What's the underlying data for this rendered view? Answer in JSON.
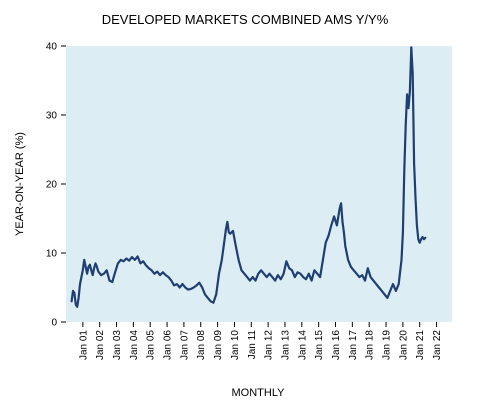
{
  "chart_data": {
    "type": "line",
    "title": "DEVELOPED MARKETS COMBINED AMS Y/Y%",
    "xlabel": "MONTHLY",
    "ylabel": "YEAR-ON-YEAR (%)",
    "ylim": [
      0,
      40
    ],
    "yticks": [
      0,
      10,
      20,
      30,
      40
    ],
    "xlim": [
      "2000-01",
      "2022-12"
    ],
    "xticks": [
      {
        "x": "2001-01",
        "label": "Jan 01"
      },
      {
        "x": "2002-01",
        "label": "Jan 02"
      },
      {
        "x": "2003-01",
        "label": "Jan 03"
      },
      {
        "x": "2004-01",
        "label": "Jan 04"
      },
      {
        "x": "2005-01",
        "label": "Jan 05"
      },
      {
        "x": "2006-01",
        "label": "Jan 06"
      },
      {
        "x": "2007-01",
        "label": "Jan 07"
      },
      {
        "x": "2008-01",
        "label": "Jan 08"
      },
      {
        "x": "2009-01",
        "label": "Jan 09"
      },
      {
        "x": "2010-01",
        "label": "Jan 10"
      },
      {
        "x": "2011-01",
        "label": "Jan 11"
      },
      {
        "x": "2012-01",
        "label": "Jan 12"
      },
      {
        "x": "2013-01",
        "label": "Jan 13"
      },
      {
        "x": "2014-01",
        "label": "Jan 14"
      },
      {
        "x": "2015-01",
        "label": "Jan 15"
      },
      {
        "x": "2016-01",
        "label": "Jan 16"
      },
      {
        "x": "2017-01",
        "label": "Jan 17"
      },
      {
        "x": "2018-01",
        "label": "Jan 18"
      },
      {
        "x": "2019-01",
        "label": "Jan 19"
      },
      {
        "x": "2020-01",
        "label": "Jan 20"
      },
      {
        "x": "2021-01",
        "label": "Jan 21"
      },
      {
        "x": "2022-01",
        "label": "Jan 22"
      }
    ],
    "grid": false,
    "legend": "none",
    "colors": {
      "plot_background": "#dcedf3",
      "line": "#1f3f73"
    },
    "series": [
      {
        "x": [
          "2000-05",
          "2000-06",
          "2000-07",
          "2000-08",
          "2000-09",
          "2000-10",
          "2000-11",
          "2000-12",
          "2001-01",
          "2001-02",
          "2001-03",
          "2001-04",
          "2001-05",
          "2001-06",
          "2001-07",
          "2001-08",
          "2001-09",
          "2001-10",
          "2001-11",
          "2001-12",
          "2002-02",
          "2002-04",
          "2002-06",
          "2002-08",
          "2002-10",
          "2002-12",
          "2003-02",
          "2003-04",
          "2003-06",
          "2003-08",
          "2003-10",
          "2003-12",
          "2004-02",
          "2004-04",
          "2004-06",
          "2004-08",
          "2004-10",
          "2004-12",
          "2005-02",
          "2005-04",
          "2005-06",
          "2005-08",
          "2005-10",
          "2005-12",
          "2006-02",
          "2006-04",
          "2006-06",
          "2006-08",
          "2006-10",
          "2006-12",
          "2007-02",
          "2007-04",
          "2007-06",
          "2007-08",
          "2007-10",
          "2007-12",
          "2008-02",
          "2008-04",
          "2008-06",
          "2008-08",
          "2008-10",
          "2008-12",
          "2009-02",
          "2009-03",
          "2009-04",
          "2009-05",
          "2009-06",
          "2009-07",
          "2009-08",
          "2009-09",
          "2009-10",
          "2009-12",
          "2010-02",
          "2010-04",
          "2010-06",
          "2010-08",
          "2010-10",
          "2010-12",
          "2011-02",
          "2011-04",
          "2011-06",
          "2011-08",
          "2011-10",
          "2011-12",
          "2012-02",
          "2012-04",
          "2012-06",
          "2012-08",
          "2012-10",
          "2012-12",
          "2013-02",
          "2013-04",
          "2013-06",
          "2013-08",
          "2013-10",
          "2013-12",
          "2014-02",
          "2014-04",
          "2014-06",
          "2014-08",
          "2014-10",
          "2014-12",
          "2015-02",
          "2015-04",
          "2015-06",
          "2015-08",
          "2015-10",
          "2015-12",
          "2016-02",
          "2016-04",
          "2016-05",
          "2016-06",
          "2016-07",
          "2016-08",
          "2016-10",
          "2016-12",
          "2017-02",
          "2017-04",
          "2017-06",
          "2017-08",
          "2017-10",
          "2017-12",
          "2018-02",
          "2018-04",
          "2018-06",
          "2018-08",
          "2018-10",
          "2018-12",
          "2019-02",
          "2019-04",
          "2019-06",
          "2019-08",
          "2019-10",
          "2019-12",
          "2020-01",
          "2020-02",
          "2020-03",
          "2020-04",
          "2020-05",
          "2020-06",
          "2020-07",
          "2020-08",
          "2020-09",
          "2020-10",
          "2020-11",
          "2020-12",
          "2021-01",
          "2021-02",
          "2021-03",
          "2021-04",
          "2021-05"
        ],
        "y": [
          3.0,
          4.5,
          4.2,
          2.5,
          2.2,
          3.5,
          5.5,
          6.5,
          7.5,
          9.0,
          8.0,
          7.0,
          8.0,
          8.3,
          7.5,
          6.8,
          7.8,
          8.5,
          8.0,
          7.3,
          6.8,
          7.0,
          7.5,
          6.0,
          5.8,
          7.2,
          8.5,
          9.0,
          8.8,
          9.2,
          8.9,
          9.4,
          9.0,
          9.5,
          8.5,
          8.8,
          8.2,
          7.8,
          7.5,
          7.0,
          7.3,
          6.8,
          7.2,
          6.8,
          6.5,
          6.0,
          5.3,
          5.5,
          5.0,
          5.5,
          5.0,
          4.7,
          4.8,
          5.0,
          5.3,
          5.7,
          5.0,
          4.0,
          3.5,
          3.0,
          2.8,
          4.0,
          7.0,
          8.0,
          9.0,
          10.5,
          12.0,
          13.5,
          14.5,
          13.0,
          12.8,
          13.2,
          11.0,
          9.0,
          7.5,
          7.0,
          6.5,
          6.0,
          6.5,
          6.0,
          7.0,
          7.5,
          7.0,
          6.5,
          7.0,
          6.5,
          6.0,
          6.8,
          6.2,
          7.0,
          8.8,
          7.8,
          7.5,
          6.5,
          7.2,
          7.0,
          6.5,
          6.2,
          7.0,
          6.0,
          7.5,
          7.0,
          6.5,
          9.0,
          11.5,
          12.5,
          14.0,
          15.3,
          14.0,
          16.5,
          17.2,
          14.5,
          13.0,
          11.0,
          9.0,
          8.0,
          7.5,
          7.0,
          6.5,
          6.8,
          6.0,
          7.8,
          6.5,
          6.0,
          5.5,
          5.0,
          4.5,
          4.0,
          3.5,
          4.5,
          5.5,
          4.5,
          5.5,
          9.0,
          13.0,
          22.0,
          28.5,
          33.0,
          31.0,
          33.5,
          39.8,
          36.0,
          23.0,
          18.0,
          14.0,
          12.0,
          11.5,
          12.0,
          12.3,
          12.0,
          12.2
        ]
      }
    ]
  }
}
